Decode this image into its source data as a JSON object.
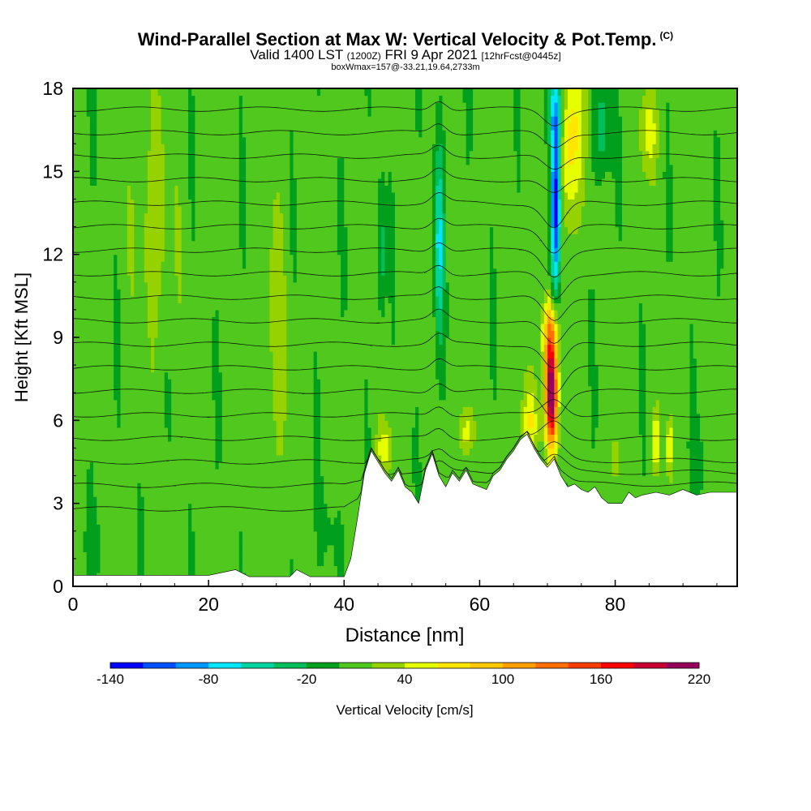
{
  "header": {
    "title": "Wind-Parallel Section at Max W: Vertical Velocity & Pot.Temp.",
    "copyright": "(C)",
    "valid_prefix": "Valid 1400 LST",
    "valid_utc": "(1200Z)",
    "valid_date": "FRI 9 Apr 2021",
    "forecast": "[12hrFcst@0445z]",
    "box_info": "boxWmax=157@-33.21,19.64,2733m"
  },
  "chart_data": {
    "type": "heatmap",
    "xlabel": "Distance [nm]",
    "ylabel": "Height [Kft MSL]",
    "x_ticks": [
      0,
      20,
      40,
      60,
      80
    ],
    "y_ticks": [
      0,
      3,
      6,
      9,
      12,
      15,
      18
    ],
    "xlim": [
      0,
      98
    ],
    "ylim": [
      0,
      18
    ],
    "colorbar": {
      "label": "Vertical Velocity [cm/s]",
      "tick_labels": [
        "-140",
        "-80",
        "-20",
        "40",
        "100",
        "160",
        "220"
      ],
      "levels": [
        -140,
        -120,
        -100,
        -80,
        -60,
        -40,
        -20,
        0,
        20,
        40,
        60,
        80,
        100,
        120,
        140,
        160,
        180,
        200,
        220
      ],
      "colors": [
        "#0000ff",
        "#0050ff",
        "#0096ff",
        "#00e6ff",
        "#00d2a0",
        "#00be5a",
        "#00a01e",
        "#50c81e",
        "#96d200",
        "#e6ff00",
        "#ffe600",
        "#ffc800",
        "#ffa000",
        "#ff6e00",
        "#ff3c00",
        "#ff0000",
        "#c80032",
        "#96005a"
      ]
    },
    "terrain_kft": [
      [
        0,
        0.4
      ],
      [
        10,
        0.4
      ],
      [
        20,
        0.4
      ],
      [
        24,
        0.6
      ],
      [
        26,
        0.35
      ],
      [
        32,
        0.35
      ],
      [
        33,
        0.6
      ],
      [
        35,
        0.35
      ],
      [
        40,
        0.35
      ],
      [
        41,
        1.0
      ],
      [
        42,
        2.5
      ],
      [
        42.5,
        3.3
      ],
      [
        43,
        4.1
      ],
      [
        44,
        4.9
      ],
      [
        45,
        4.5
      ],
      [
        46,
        4.1
      ],
      [
        47,
        3.8
      ],
      [
        48,
        4.2
      ],
      [
        49,
        3.6
      ],
      [
        50,
        3.4
      ],
      [
        51,
        3.0
      ],
      [
        52,
        4.2
      ],
      [
        53,
        4.8
      ],
      [
        54,
        4.0
      ],
      [
        55,
        3.6
      ],
      [
        56,
        4.1
      ],
      [
        57,
        3.8
      ],
      [
        58,
        4.2
      ],
      [
        59,
        3.7
      ],
      [
        60,
        3.6
      ],
      [
        61,
        3.5
      ],
      [
        62,
        4.0
      ],
      [
        63,
        4.2
      ],
      [
        64,
        4.6
      ],
      [
        65,
        4.9
      ],
      [
        66,
        5.3
      ],
      [
        67,
        5.5
      ],
      [
        68,
        5.0
      ],
      [
        69,
        4.6
      ],
      [
        70,
        4.3
      ],
      [
        71,
        4.6
      ],
      [
        72,
        4.0
      ],
      [
        73,
        3.6
      ],
      [
        74,
        3.7
      ],
      [
        75,
        3.5
      ],
      [
        76,
        3.4
      ],
      [
        77,
        3.6
      ],
      [
        78,
        3.2
      ],
      [
        79,
        3.0
      ],
      [
        81,
        3.0
      ],
      [
        82,
        3.4
      ],
      [
        83,
        3.2
      ],
      [
        84,
        3.3
      ],
      [
        86,
        3.4
      ],
      [
        88,
        3.3
      ],
      [
        90,
        3.5
      ],
      [
        92,
        3.3
      ],
      [
        94,
        3.4
      ],
      [
        96,
        3.4
      ],
      [
        98,
        3.4
      ]
    ],
    "velocity_features": [
      {
        "x": 70.5,
        "y": 7.0,
        "sx": 0.9,
        "sy": 2.0,
        "w": 230
      },
      {
        "x": 70.2,
        "y": 9.3,
        "sx": 1.2,
        "sy": 1.2,
        "w": 70
      },
      {
        "x": 71.2,
        "y": 14.0,
        "sx": 0.75,
        "sy": 3.4,
        "w": -160
      },
      {
        "x": 71.2,
        "y": 17.2,
        "sx": 1.3,
        "sy": 1.3,
        "w": -60
      },
      {
        "x": 73.3,
        "y": 16.2,
        "sx": 1.8,
        "sy": 3.0,
        "w": 70
      },
      {
        "x": 54.0,
        "y": 12.5,
        "sx": 0.7,
        "sy": 3.5,
        "w": -70
      },
      {
        "x": 45.5,
        "y": 12.0,
        "sx": 0.6,
        "sy": 2.5,
        "w": -40
      },
      {
        "x": 46.0,
        "y": 5.0,
        "sx": 1.2,
        "sy": 0.8,
        "w": 40
      },
      {
        "x": 58.0,
        "y": 5.6,
        "sx": 1.0,
        "sy": 1.0,
        "w": 45
      },
      {
        "x": 67.5,
        "y": 6.0,
        "sx": 1.2,
        "sy": 1.3,
        "w": 45
      },
      {
        "x": 78.0,
        "y": 16.5,
        "sx": 1.2,
        "sy": 2.0,
        "w": -40
      },
      {
        "x": 85.0,
        "y": 16.5,
        "sx": 1.2,
        "sy": 1.5,
        "w": 45
      },
      {
        "x": 86.0,
        "y": 5.2,
        "sx": 0.5,
        "sy": 1.0,
        "w": 60
      },
      {
        "x": 88.0,
        "y": 5.0,
        "sx": 0.5,
        "sy": 1.0,
        "w": 60
      },
      {
        "x": 80.0,
        "y": 4.5,
        "sx": 0.6,
        "sy": 0.8,
        "w": 35
      },
      {
        "x": 12.0,
        "y": 13.0,
        "sx": 2.5,
        "sy": 4.0,
        "w": 25
      },
      {
        "x": 30.0,
        "y": 9.0,
        "sx": 1.5,
        "sy": 5.0,
        "w": 20
      },
      {
        "x": 3.0,
        "y": 1.5,
        "sx": 2.0,
        "sy": 1.2,
        "w": -10
      },
      {
        "x": 38.0,
        "y": 2.0,
        "sx": 2.0,
        "sy": 1.5,
        "w": -10
      },
      {
        "x": 93.0,
        "y": 4.5,
        "sx": 2.5,
        "sy": 1.5,
        "w": -10
      }
    ],
    "isentrope_labels": [
      "--",
      "--",
      "--",
      "--",
      "--",
      "--",
      "--",
      "--",
      "--",
      "--",
      "--",
      "--",
      "--",
      "--",
      "--",
      "--",
      "--",
      "--"
    ]
  }
}
